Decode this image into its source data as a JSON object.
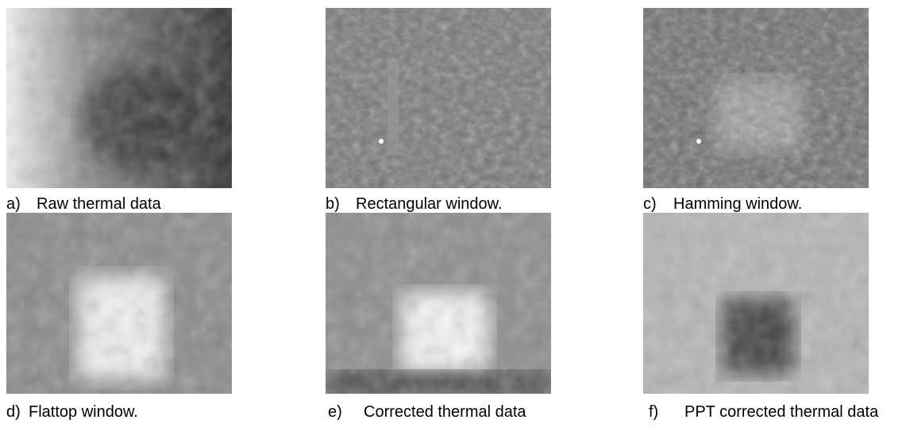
{
  "panels": [
    {
      "label": "a)",
      "caption": "Raw thermal data"
    },
    {
      "label": "b)",
      "caption": "Rectangular window."
    },
    {
      "label": "c)",
      "caption": "Hamming window."
    },
    {
      "label": "d)",
      "caption": "Flattop window."
    },
    {
      "label": "e)",
      "caption": "Corrected thermal data"
    },
    {
      "label": "f)",
      "caption": "PPT corrected thermal data"
    }
  ]
}
